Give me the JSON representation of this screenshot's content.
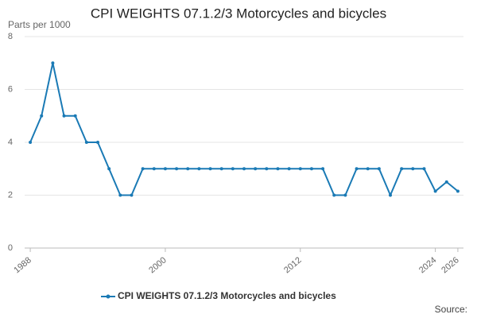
{
  "chart_data": {
    "type": "line",
    "title": "CPI WEIGHTS 07.1.2/3 Motorcycles and bicycles",
    "y_label": "Parts per 1000",
    "source": "Source:",
    "x": [
      1988,
      1989,
      1990,
      1991,
      1992,
      1993,
      1994,
      1995,
      1996,
      1997,
      1998,
      1999,
      2000,
      2001,
      2002,
      2003,
      2004,
      2005,
      2006,
      2007,
      2008,
      2009,
      2010,
      2011,
      2012,
      2013,
      2014,
      2015,
      2016,
      2017,
      2018,
      2019,
      2020,
      2021,
      2022,
      2023,
      2024,
      2025,
      2026
    ],
    "series": [
      {
        "name": "CPI WEIGHTS 07.1.2/3 Motorcycles and bicycles",
        "color": "#1a7ab5",
        "values": [
          4,
          5,
          7,
          5,
          5,
          4,
          4,
          3,
          2,
          2,
          3,
          3,
          3,
          3,
          3,
          3,
          3,
          3,
          3,
          3,
          3,
          3,
          3,
          3,
          3,
          3,
          3,
          2,
          2,
          3,
          3,
          3,
          2,
          3,
          3,
          3,
          2.15,
          2.5,
          2.15
        ]
      }
    ],
    "xlim": [
      1987.5,
      2026.5
    ],
    "xticks": [
      1988,
      2000,
      2012,
      2024,
      2026
    ],
    "ylim": [
      0,
      8
    ],
    "yticks": [
      0,
      2,
      4,
      6,
      8
    ],
    "grid": true
  }
}
